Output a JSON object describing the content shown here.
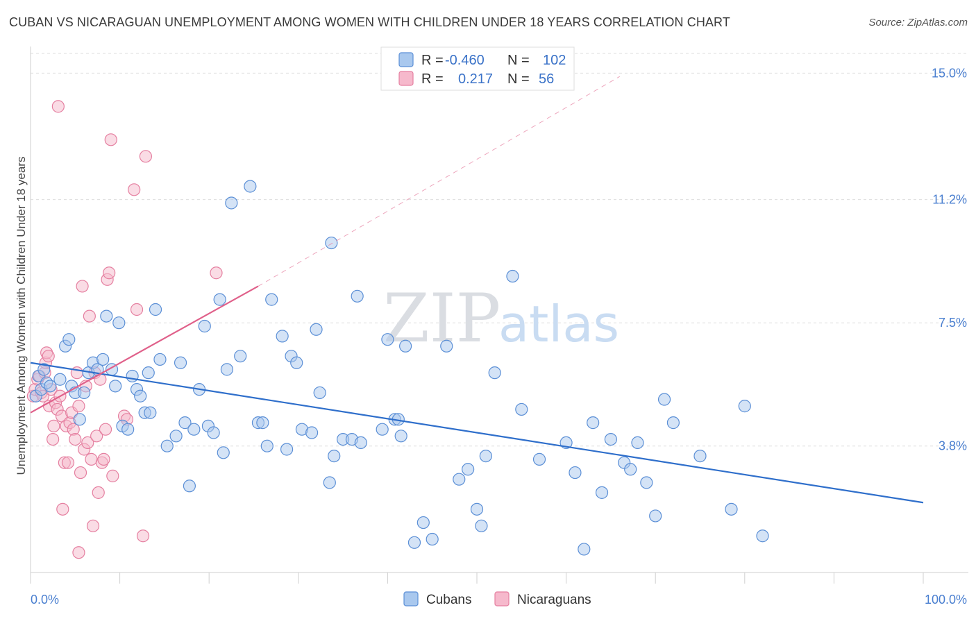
{
  "title": "CUBAN VS NICARAGUAN UNEMPLOYMENT AMONG WOMEN WITH CHILDREN UNDER 18 YEARS CORRELATION CHART",
  "source": "Source: ZipAtlas.com",
  "watermark": {
    "part1": "ZIP",
    "part2": "atlas"
  },
  "legend": {
    "rows": [
      {
        "r_label": "R =",
        "r_value": "-0.460",
        "n_label": "N =",
        "n_value": "102"
      },
      {
        "r_label": "R =",
        "r_value": " 0.217",
        "n_label": "N =",
        "n_value": " 56"
      }
    ]
  },
  "colors": {
    "cubans_fill": "#a9c8ee",
    "cubans_stroke": "#5b8fd6",
    "cubans_line": "#2f6fcb",
    "nicaraguans_fill": "#f6b9cc",
    "nicaraguans_stroke": "#e57fa0",
    "nicaraguans_line": "#e0608a",
    "tick_text": "#4a7fd0",
    "grid": "#dddddd"
  },
  "chart_data": {
    "type": "scatter",
    "title": "CUBAN VS NICARAGUAN UNEMPLOYMENT AMONG WOMEN WITH CHILDREN UNDER 18 YEARS CORRELATION CHART",
    "xlabel": "",
    "ylabel": "Unemployment Among Women with Children Under 18 years",
    "xlim": [
      0,
      100
    ],
    "ylim": [
      0,
      15.8
    ],
    "x_tick_labels": [
      "0.0%",
      "100.0%"
    ],
    "y_ticks": [
      3.8,
      7.5,
      11.2,
      15.0
    ],
    "y_tick_labels": [
      "3.8%",
      "7.5%",
      "11.2%",
      "15.0%"
    ],
    "grid": true,
    "legend_position": "top-center",
    "series": [
      {
        "name": "Cubans",
        "r": -0.46,
        "n": 102,
        "trend": {
          "x": [
            0,
            100
          ],
          "y": [
            6.3,
            2.1
          ],
          "dashed": false
        },
        "points": [
          [
            0.6,
            5.3
          ],
          [
            0.9,
            5.9
          ],
          [
            1.2,
            5.5
          ],
          [
            1.5,
            6.1
          ],
          [
            1.8,
            5.7
          ],
          [
            2.2,
            5.6
          ],
          [
            3.3,
            5.8
          ],
          [
            3.9,
            6.8
          ],
          [
            4.3,
            7.0
          ],
          [
            4.6,
            5.6
          ],
          [
            5.0,
            5.4
          ],
          [
            5.5,
            4.6
          ],
          [
            6.0,
            5.4
          ],
          [
            6.5,
            6.0
          ],
          [
            7.0,
            6.3
          ],
          [
            7.5,
            6.1
          ],
          [
            8.1,
            6.4
          ],
          [
            8.5,
            7.7
          ],
          [
            9.1,
            6.1
          ],
          [
            9.5,
            5.6
          ],
          [
            9.9,
            7.5
          ],
          [
            10.3,
            4.4
          ],
          [
            10.9,
            4.3
          ],
          [
            11.4,
            5.9
          ],
          [
            11.9,
            5.5
          ],
          [
            12.3,
            5.3
          ],
          [
            12.8,
            4.8
          ],
          [
            13.4,
            4.8
          ],
          [
            13.2,
            6.0
          ],
          [
            14.0,
            7.9
          ],
          [
            14.5,
            6.4
          ],
          [
            15.3,
            3.8
          ],
          [
            16.3,
            4.1
          ],
          [
            16.8,
            6.3
          ],
          [
            17.3,
            4.5
          ],
          [
            17.8,
            2.6
          ],
          [
            18.3,
            4.3
          ],
          [
            18.9,
            5.5
          ],
          [
            19.5,
            7.4
          ],
          [
            19.9,
            4.4
          ],
          [
            20.5,
            4.2
          ],
          [
            21.2,
            8.2
          ],
          [
            21.6,
            3.6
          ],
          [
            22.0,
            6.1
          ],
          [
            22.5,
            11.1
          ],
          [
            23.5,
            6.5
          ],
          [
            24.6,
            11.6
          ],
          [
            25.5,
            4.5
          ],
          [
            26.0,
            4.5
          ],
          [
            26.5,
            3.8
          ],
          [
            27.0,
            8.2
          ],
          [
            28.2,
            7.1
          ],
          [
            28.7,
            3.7
          ],
          [
            29.2,
            6.5
          ],
          [
            29.8,
            6.3
          ],
          [
            30.4,
            4.3
          ],
          [
            31.5,
            4.2
          ],
          [
            32.0,
            7.3
          ],
          [
            32.4,
            5.4
          ],
          [
            33.5,
            2.7
          ],
          [
            33.7,
            9.9
          ],
          [
            34.0,
            3.5
          ],
          [
            35.0,
            4.0
          ],
          [
            36.0,
            4.0
          ],
          [
            36.6,
            8.3
          ],
          [
            37.0,
            3.9
          ],
          [
            39.4,
            4.3
          ],
          [
            40.0,
            7.0
          ],
          [
            40.8,
            4.6
          ],
          [
            41.2,
            4.6
          ],
          [
            41.5,
            4.1
          ],
          [
            42.0,
            6.8
          ],
          [
            43.0,
            0.9
          ],
          [
            44.0,
            1.5
          ],
          [
            45.0,
            1.0
          ],
          [
            46.6,
            6.8
          ],
          [
            48.0,
            2.8
          ],
          [
            49.0,
            3.1
          ],
          [
            50.0,
            1.9
          ],
          [
            50.5,
            1.4
          ],
          [
            51.0,
            3.5
          ],
          [
            52.0,
            6.0
          ],
          [
            54.0,
            8.9
          ],
          [
            55.0,
            4.9
          ],
          [
            57.0,
            3.4
          ],
          [
            60.0,
            3.9
          ],
          [
            61.0,
            3.0
          ],
          [
            62.0,
            0.7
          ],
          [
            63.0,
            4.5
          ],
          [
            64.0,
            2.4
          ],
          [
            65.0,
            4.0
          ],
          [
            66.5,
            3.3
          ],
          [
            67.2,
            3.1
          ],
          [
            68.0,
            3.9
          ],
          [
            69.0,
            2.7
          ],
          [
            70.0,
            1.7
          ],
          [
            71.0,
            5.2
          ],
          [
            72.0,
            4.5
          ],
          [
            75.0,
            3.5
          ],
          [
            78.5,
            1.9
          ],
          [
            80.0,
            5.0
          ],
          [
            82.0,
            1.1
          ]
        ]
      },
      {
        "name": "Nicaraguans",
        "r": 0.217,
        "n": 56,
        "trend": {
          "x": [
            0,
            25.5
          ],
          "y": [
            4.8,
            8.6
          ],
          "dashed": false
        },
        "trend_extension": {
          "x": [
            25.5,
            66
          ],
          "y": [
            8.6,
            14.9
          ],
          "dashed": true
        },
        "points": [
          [
            0.3,
            5.3
          ],
          [
            0.5,
            5.5
          ],
          [
            0.8,
            5.8
          ],
          [
            1.0,
            5.9
          ],
          [
            1.2,
            5.4
          ],
          [
            1.4,
            5.3
          ],
          [
            1.6,
            6.0
          ],
          [
            1.7,
            6.3
          ],
          [
            1.8,
            6.6
          ],
          [
            2.0,
            6.5
          ],
          [
            2.1,
            5.0
          ],
          [
            2.3,
            5.5
          ],
          [
            2.5,
            4.0
          ],
          [
            2.6,
            4.4
          ],
          [
            2.8,
            5.1
          ],
          [
            3.0,
            4.9
          ],
          [
            3.1,
            14.0
          ],
          [
            3.3,
            5.3
          ],
          [
            3.5,
            4.7
          ],
          [
            3.6,
            1.9
          ],
          [
            3.8,
            3.3
          ],
          [
            4.0,
            4.4
          ],
          [
            4.2,
            3.3
          ],
          [
            4.4,
            4.5
          ],
          [
            4.6,
            4.8
          ],
          [
            4.8,
            4.3
          ],
          [
            5.0,
            4.0
          ],
          [
            5.2,
            6.0
          ],
          [
            5.4,
            5.0
          ],
          [
            5.6,
            3.0
          ],
          [
            5.8,
            8.6
          ],
          [
            6.0,
            3.7
          ],
          [
            6.2,
            5.6
          ],
          [
            6.4,
            3.9
          ],
          [
            6.6,
            7.7
          ],
          [
            6.8,
            3.4
          ],
          [
            7.0,
            1.4
          ],
          [
            7.2,
            6.0
          ],
          [
            7.4,
            4.1
          ],
          [
            7.6,
            2.4
          ],
          [
            7.8,
            5.8
          ],
          [
            8.0,
            3.3
          ],
          [
            8.2,
            3.4
          ],
          [
            8.4,
            4.3
          ],
          [
            8.6,
            8.8
          ],
          [
            8.8,
            9.0
          ],
          [
            9.2,
            2.9
          ],
          [
            9.0,
            13.0
          ],
          [
            10.5,
            4.7
          ],
          [
            10.8,
            4.6
          ],
          [
            11.6,
            11.5
          ],
          [
            11.9,
            7.9
          ],
          [
            12.6,
            1.1
          ],
          [
            12.9,
            12.5
          ],
          [
            5.4,
            0.6
          ],
          [
            20.8,
            9.0
          ]
        ]
      }
    ]
  },
  "bottom_legend": [
    {
      "label": "Cubans"
    },
    {
      "label": "Nicaraguans"
    }
  ]
}
